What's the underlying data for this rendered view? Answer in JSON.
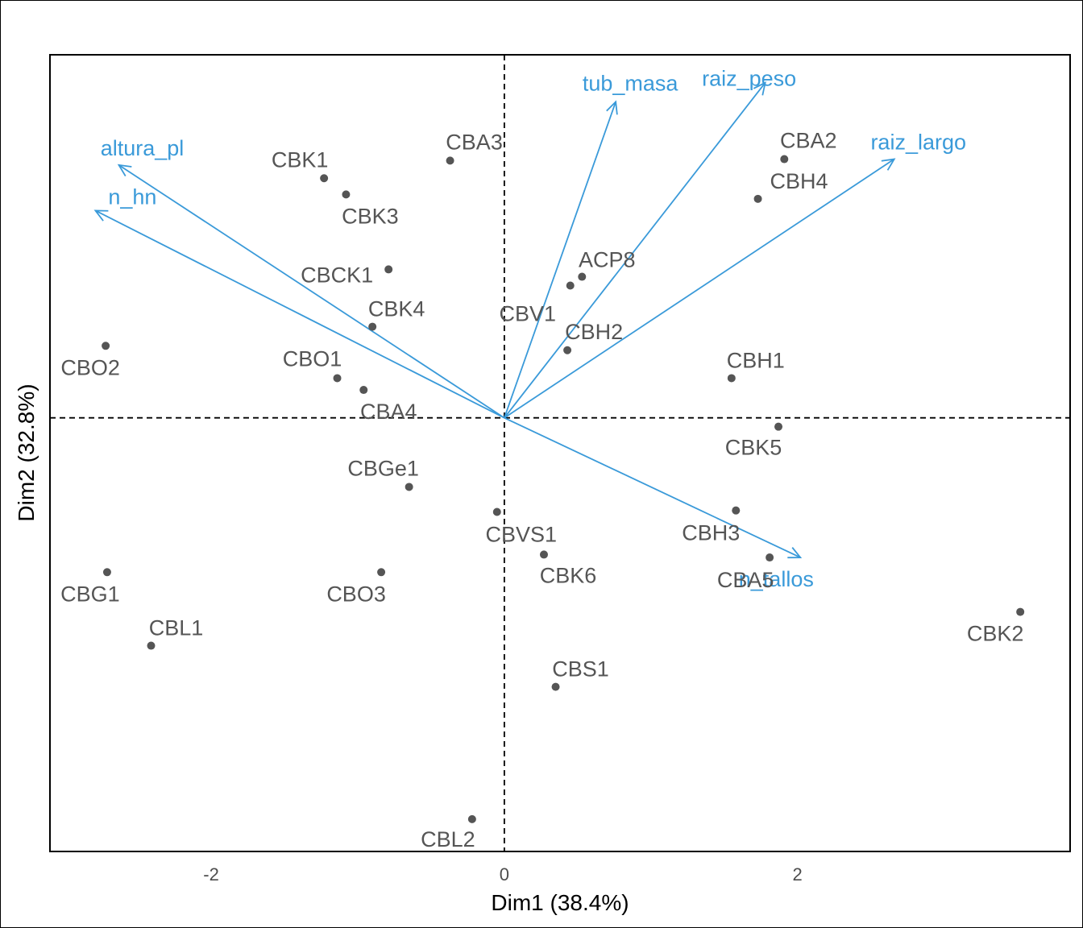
{
  "chart_data": {
    "type": "scatter",
    "title": "",
    "xlabel": "Dim1 (38.4%)",
    "ylabel": "Dim2 (32.8%)",
    "xlim": [
      -3.1,
      3.86
    ],
    "ylim": [
      -2.95,
      2.47
    ],
    "xticks": [
      "-2",
      "0",
      "2"
    ],
    "yticks": [],
    "grid": false,
    "legend": "none",
    "colors": {
      "individuals": "#555555",
      "variables": "#3a9ad9"
    },
    "individuals": [
      {
        "name": "CBA3",
        "x": -0.37,
        "y": 1.75
      },
      {
        "name": "CBK1",
        "x": -1.23,
        "y": 1.63
      },
      {
        "name": "CBK3",
        "x": -1.08,
        "y": 1.52
      },
      {
        "name": "CBA2",
        "x": 1.91,
        "y": 1.76
      },
      {
        "name": "CBH4",
        "x": 1.73,
        "y": 1.49
      },
      {
        "name": "ACP8",
        "x": 0.53,
        "y": 0.96
      },
      {
        "name": "CBV1",
        "x": 0.45,
        "y": 0.9
      },
      {
        "name": "CBCK1",
        "x": -0.79,
        "y": 1.01
      },
      {
        "name": "CBK4",
        "x": -0.9,
        "y": 0.62
      },
      {
        "name": "CBH2",
        "x": 0.43,
        "y": 0.46
      },
      {
        "name": "CBO2",
        "x": -2.72,
        "y": 0.49
      },
      {
        "name": "CBO1",
        "x": -1.14,
        "y": 0.27
      },
      {
        "name": "CBA4",
        "x": -0.96,
        "y": 0.19
      },
      {
        "name": "CBH1",
        "x": 1.55,
        "y": 0.27
      },
      {
        "name": "CBK5",
        "x": 1.87,
        "y": -0.06
      },
      {
        "name": "CBGe1",
        "x": -0.65,
        "y": -0.47
      },
      {
        "name": "CBVS1",
        "x": -0.05,
        "y": -0.64
      },
      {
        "name": "CBH3",
        "x": 1.58,
        "y": -0.63
      },
      {
        "name": "CBK6",
        "x": 0.27,
        "y": -0.93
      },
      {
        "name": "CBA5",
        "x": 1.81,
        "y": -0.95
      },
      {
        "name": "CBG1",
        "x": -2.71,
        "y": -1.05
      },
      {
        "name": "CBO3",
        "x": -0.84,
        "y": -1.05
      },
      {
        "name": "CBL1",
        "x": -2.41,
        "y": -1.55
      },
      {
        "name": "CBK2",
        "x": 3.52,
        "y": -1.32
      },
      {
        "name": "CBS1",
        "x": 0.35,
        "y": -1.83
      },
      {
        "name": "CBL2",
        "x": -0.22,
        "y": -2.73
      }
    ],
    "variables": [
      {
        "name": "tub_masa",
        "x": 0.76,
        "y": 2.15
      },
      {
        "name": "raiz_peso",
        "x": 1.78,
        "y": 2.28
      },
      {
        "name": "raiz_largo",
        "x": 2.66,
        "y": 1.76
      },
      {
        "name": "altura_pl",
        "x": -2.63,
        "y": 1.72
      },
      {
        "name": "n_hn",
        "x": -2.79,
        "y": 1.41
      },
      {
        "name": "n_tallos",
        "x": 2.02,
        "y": -0.95
      }
    ]
  }
}
